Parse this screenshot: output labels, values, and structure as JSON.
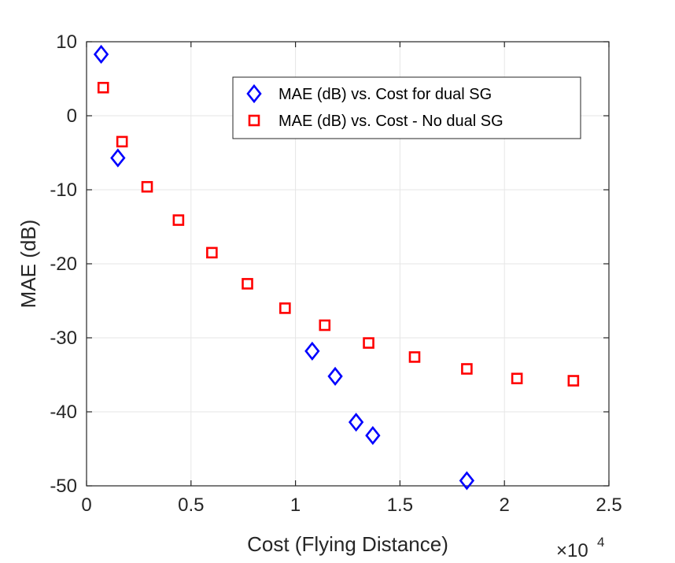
{
  "chart_data": {
    "type": "scatter",
    "title": "",
    "xlabel": "Cost (Flying Distance)",
    "ylabel": "MAE (dB)",
    "x_multiplier_label": "×10",
    "x_multiplier_exponent": "4",
    "xlim": [
      0,
      2.5
    ],
    "ylim": [
      -50,
      10
    ],
    "xticks": [
      0,
      0.5,
      1,
      1.5,
      2,
      2.5
    ],
    "xtick_labels": [
      "0",
      "0.5",
      "1",
      "1.5",
      "2",
      "2.5"
    ],
    "yticks": [
      -50,
      -40,
      -30,
      -20,
      -10,
      0,
      10
    ],
    "ytick_labels": [
      "-50",
      "-40",
      "-30",
      "-20",
      "-10",
      "0",
      "10"
    ],
    "grid": true,
    "legend_position": "top-right",
    "series": [
      {
        "name": "MAE (dB) vs. Cost for dual SG",
        "marker": "diamond",
        "color": "#0000ff",
        "x": [
          0.07,
          0.15,
          1.08,
          1.19,
          1.29,
          1.37,
          1.82
        ],
        "y": [
          8.3,
          -5.7,
          -31.8,
          -35.2,
          -41.4,
          -43.2,
          -49.3
        ]
      },
      {
        "name": "MAE (dB) vs. Cost - No dual SG",
        "marker": "square",
        "color": "#ff0000",
        "x": [
          0.08,
          0.17,
          0.29,
          0.44,
          0.6,
          0.77,
          0.95,
          1.14,
          1.35,
          1.57,
          1.82,
          2.06,
          2.33
        ],
        "y": [
          3.8,
          -3.5,
          -9.6,
          -14.1,
          -18.5,
          -22.7,
          -26.0,
          -28.3,
          -30.7,
          -32.6,
          -34.2,
          -35.5,
          -35.8
        ]
      }
    ]
  }
}
